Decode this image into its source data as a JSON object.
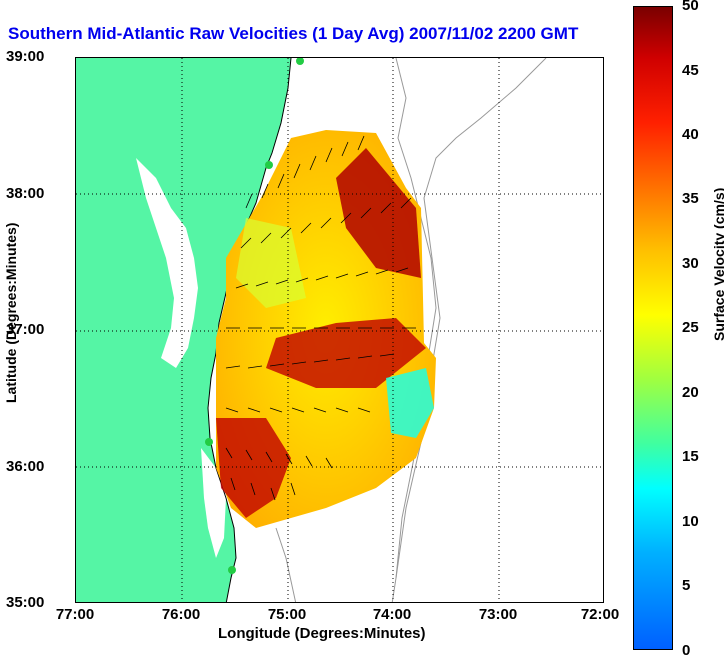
{
  "title": "Southern Mid-Atlantic Raw Velocities (1 Day Avg) 2007/11/02 2200 GMT",
  "axes": {
    "ylabel": "Latitude (Degrees:Minutes)",
    "xlabel": "Longitude (Degrees:Minutes)",
    "yticks": [
      "39:00",
      "38:00",
      "37:00",
      "36:00",
      "35:00"
    ],
    "xticks": [
      "77:00",
      "76:00",
      "75:00",
      "74:00",
      "73:00",
      "72:00"
    ]
  },
  "colorbar": {
    "label": "Surface Velocity (cm/s)",
    "ticks": [
      "50",
      "45",
      "40",
      "35",
      "30",
      "25",
      "20",
      "15",
      "10",
      "5",
      "0"
    ],
    "colors": [
      "#0060ff",
      "#00ffff",
      "#40ffa0",
      "#ffff00",
      "#ff7000",
      "#d00000",
      "#7a0000"
    ]
  },
  "colors": {
    "land": "#55f5a5",
    "water": "#ffffff",
    "title": "#0000ee",
    "grid": "#000000"
  }
}
